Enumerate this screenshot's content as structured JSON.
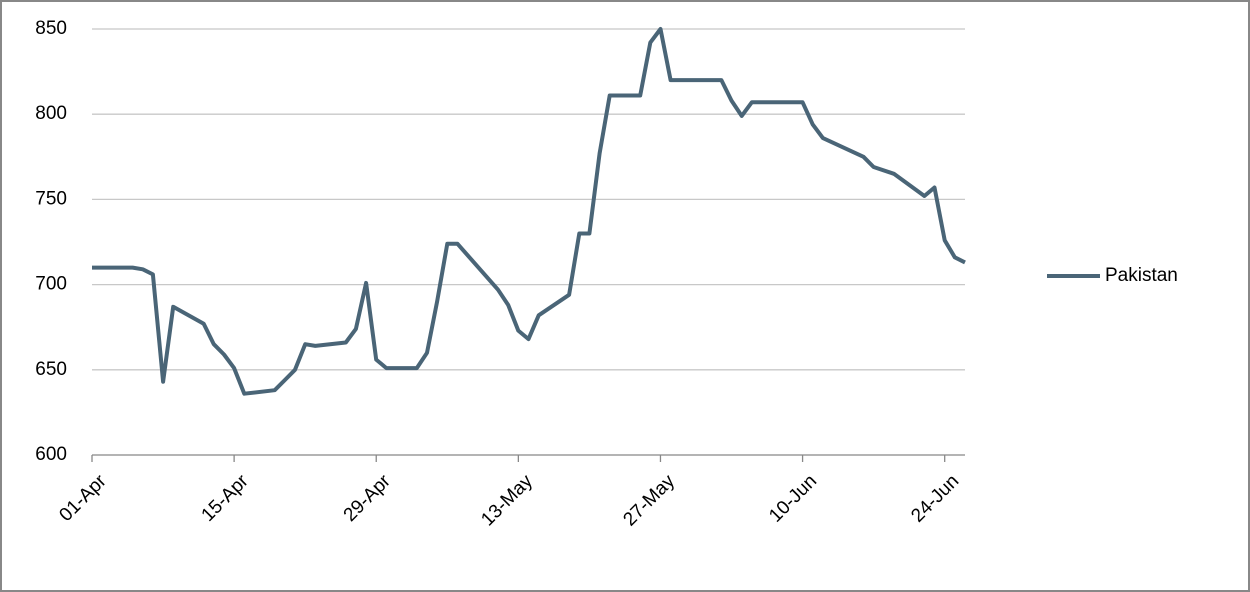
{
  "chart_data": {
    "type": "line",
    "x": [
      "01-Apr",
      "05-Apr",
      "06-Apr",
      "07-Apr",
      "08-Apr",
      "09-Apr",
      "12-Apr",
      "13-Apr",
      "14-Apr",
      "15-Apr",
      "16-Apr",
      "19-Apr",
      "20-Apr",
      "21-Apr",
      "22-Apr",
      "23-Apr",
      "26-Apr",
      "27-Apr",
      "28-Apr",
      "29-Apr",
      "30-Apr",
      "03-May",
      "04-May",
      "05-May",
      "06-May",
      "07-May",
      "11-May",
      "12-May",
      "13-May",
      "14-May",
      "15-May",
      "18-May",
      "19-May",
      "20-May",
      "21-May",
      "22-May",
      "25-May",
      "26-May",
      "27-May",
      "28-May",
      "02-Jun",
      "03-Jun",
      "04-Jun",
      "05-Jun",
      "10-Jun",
      "11-Jun",
      "12-Jun",
      "16-Jun",
      "17-Jun",
      "19-Jun",
      "22-Jun",
      "23-Jun",
      "24-Jun",
      "25-Jun",
      "26-Jun"
    ],
    "series": [
      {
        "name": "Pakistan",
        "color": "#4a6577",
        "values": [
          710,
          710,
          709,
          706,
          643,
          687,
          677,
          665,
          659,
          651,
          636,
          638,
          644,
          650,
          665,
          664,
          666,
          674,
          701,
          656,
          651,
          651,
          660,
          690,
          724,
          724,
          697,
          688,
          673,
          668,
          682,
          694,
          730,
          730,
          777,
          811,
          811,
          842,
          850,
          820,
          820,
          808,
          799,
          807,
          807,
          794,
          786,
          775,
          769,
          765,
          752,
          757,
          726,
          716,
          713
        ]
      }
    ],
    "xlim": [
      "01-Apr",
      "26-Jun"
    ],
    "xticks": [
      "01-Apr",
      "15-Apr",
      "29-Apr",
      "13-May",
      "27-May",
      "10-Jun",
      "24-Jun"
    ],
    "ylim": [
      600,
      850
    ],
    "yticks": [
      600,
      650,
      700,
      750,
      800,
      850
    ],
    "grid": true,
    "legend": "right"
  }
}
